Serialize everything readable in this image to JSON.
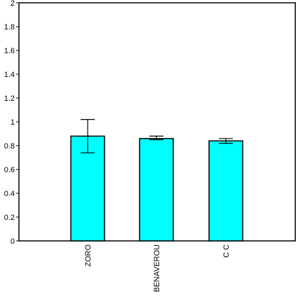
{
  "chart_data": {
    "type": "bar",
    "title": "",
    "xlabel": "",
    "ylabel": "",
    "categories": [
      "ZORO",
      "BENAVEROU",
      "C  C"
    ],
    "values": [
      0.88,
      0.86,
      0.84
    ],
    "error_low": [
      0.74,
      0.85,
      0.82
    ],
    "error_high": [
      1.02,
      0.88,
      0.86
    ],
    "ylim": [
      0,
      2
    ],
    "yticks": [
      0,
      0.2,
      0.4,
      0.6,
      0.8,
      1,
      1.2,
      1.4,
      1.6,
      1.8,
      2
    ],
    "ytick_labels": [
      "0",
      "0.2",
      "0.4",
      "0.6",
      "0.8",
      "1",
      "1.2",
      "1.4",
      "1.6",
      "1.8",
      "2"
    ],
    "grid": false,
    "legend": "none",
    "bar_color": "#00ffff",
    "edge_color": "#000000"
  }
}
